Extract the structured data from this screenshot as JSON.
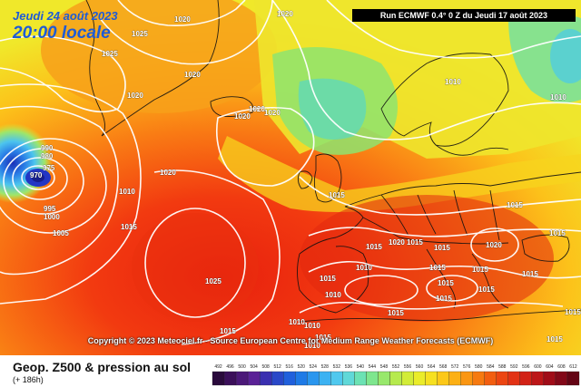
{
  "header": {
    "date": "Jeudi 24 août 2023",
    "time": "20:00 locale",
    "run": "Run ECMWF 0.4° 0 Z du Jeudi 17 août 2023"
  },
  "copyright": "Copyright © 2023 Meteociel.fr - Source European Centre for Medium Range Weather Forecasts (ECMWF)",
  "legend": {
    "title": "Geop. Z500 & pression au sol",
    "subtitle": "(+ 186h)",
    "ticks": [
      "492",
      "496",
      "500",
      "504",
      "508",
      "512",
      "516",
      "520",
      "524",
      "528",
      "532",
      "536",
      "540",
      "544",
      "548",
      "552",
      "556",
      "560",
      "564",
      "568",
      "572",
      "576",
      "580",
      "584",
      "588",
      "592",
      "596",
      "600",
      "604",
      "608",
      "612"
    ],
    "colors": [
      "#2a0a3c",
      "#3b0f5a",
      "#4b1878",
      "#5a2196",
      "#3a2fb0",
      "#2a48c8",
      "#2060dc",
      "#1e7ae6",
      "#2a96ee",
      "#3cb2f2",
      "#50c8ee",
      "#60d8d8",
      "#6ce2b4",
      "#7ee68e",
      "#98e86c",
      "#b6ea4e",
      "#d2ec38",
      "#eaec2a",
      "#f6e020",
      "#fcc818",
      "#fcb014",
      "#fa9612",
      "#f67a10",
      "#f25e10",
      "#ec4612",
      "#e23214",
      "#d22216",
      "#bc1618",
      "#a00c18",
      "#820818",
      "#640414"
    ]
  },
  "isobars": [
    "1020",
    "1020",
    "1025",
    "1025",
    "1020",
    "1020",
    "1020",
    "1020",
    "1020",
    "990",
    "980",
    "975",
    "970",
    "1010",
    "995",
    "1000",
    "1005",
    "1015",
    "1020",
    "1010",
    "1025",
    "1015",
    "1015",
    "1015",
    "1015",
    "1020",
    "1020",
    "1010",
    "1015",
    "1015",
    "1015",
    "1015",
    "1015",
    "1010",
    "1010",
    "1010",
    "1015",
    "1015",
    "1015",
    "1015",
    "1015",
    "1015",
    "1015",
    "1010",
    "1015",
    "1010",
    "1015"
  ]
}
